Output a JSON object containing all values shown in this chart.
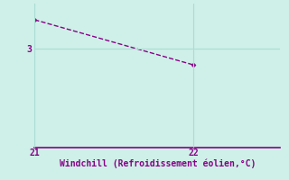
{
  "x": [
    21,
    22
  ],
  "y": [
    3.32,
    2.82
  ],
  "line_color": "#880088",
  "marker": "D",
  "marker_size": 2.5,
  "line_style": "--",
  "line_width": 1.0,
  "background_color": "#cff0e8",
  "grid_color": "#aaddd4",
  "spine_color": "#880088",
  "xlabel": "Windchill (Refroidissement éolien,°C)",
  "xlabel_color": "#880088",
  "xlabel_fontsize": 7,
  "tick_color": "#880088",
  "tick_fontsize": 7,
  "xlim": [
    21,
    22.55
  ],
  "ylim": [
    1.9,
    3.5
  ],
  "yticks": [
    3
  ],
  "xticks": [
    21,
    22
  ],
  "figsize": [
    3.2,
    2.0
  ],
  "dpi": 100
}
